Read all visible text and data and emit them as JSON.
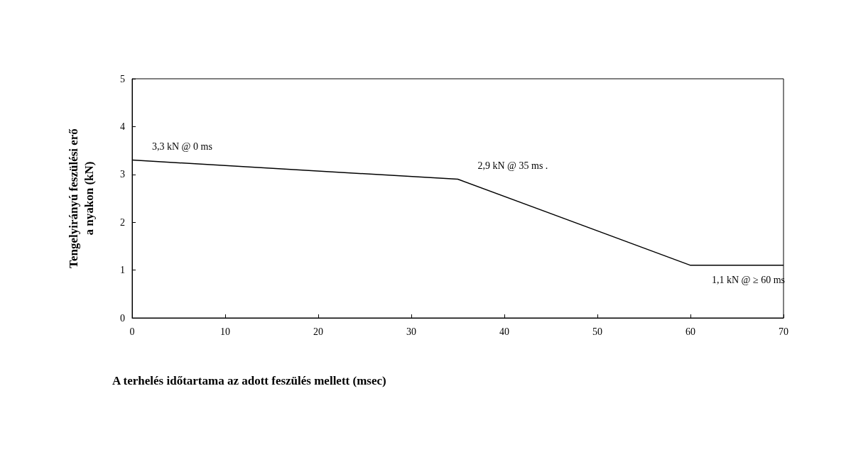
{
  "chart_data": {
    "type": "line",
    "xlabel": "A terhelés időtartama az adott feszülés mellett (msec)",
    "ylabel": "Tengelyirányú feszülési erő\na nyakon (kN)",
    "x": [
      0,
      35,
      60,
      70
    ],
    "series": [
      {
        "color": "#000000",
        "values": [
          3.3,
          2.9,
          1.1,
          1.1
        ]
      }
    ],
    "xlim": [
      0,
      70
    ],
    "xticks": [
      0,
      10,
      20,
      30,
      40,
      50,
      60,
      70
    ],
    "ylim": [
      0,
      5
    ],
    "yticks": [
      0,
      1,
      2,
      3,
      4,
      5
    ],
    "grid": false,
    "marker": "none",
    "line_style": "solid",
    "annotations": [
      {
        "text": "3,3 kN @ 0 ms",
        "x": 0,
        "y": 3.3
      },
      {
        "text": "2,9 kN @ 35 ms .",
        "x": 35,
        "y": 2.9
      },
      {
        "text": "1,1 kN @ ≥ 60 ms",
        "x": 60,
        "y": 1.1
      }
    ]
  }
}
